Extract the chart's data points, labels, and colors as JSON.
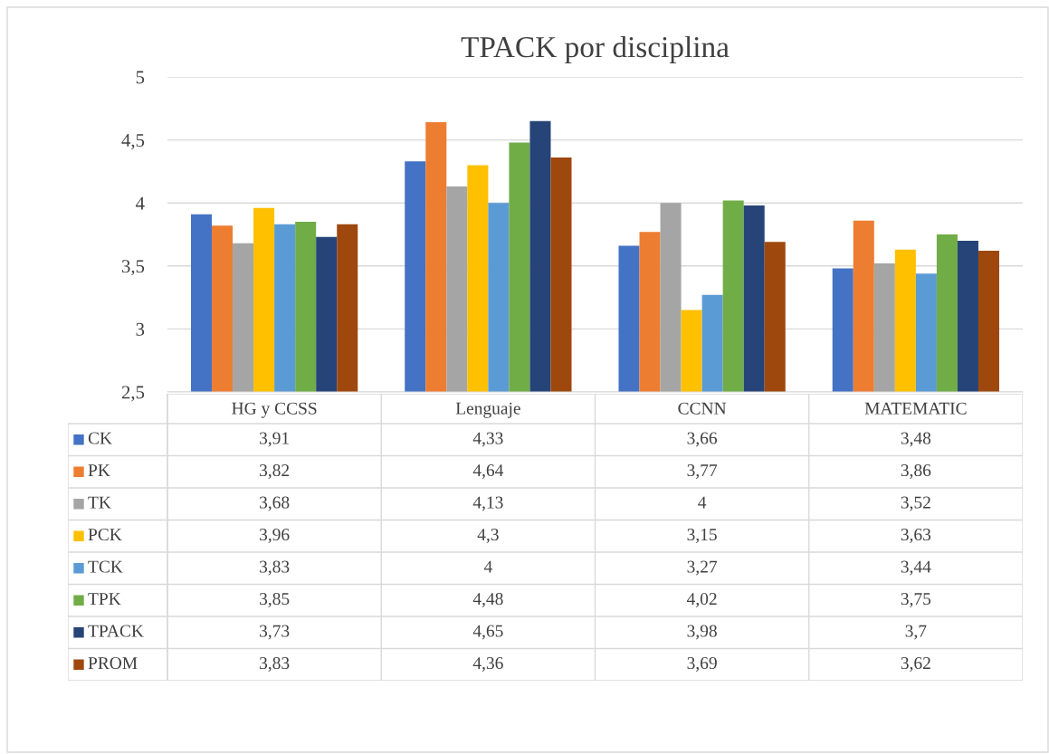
{
  "chart_data": {
    "type": "bar",
    "title": "TPACK por disciplina",
    "categories": [
      "HG y CCSS",
      "Lenguaje",
      "CCNN",
      "MATEMATIC"
    ],
    "series": [
      {
        "name": "CK",
        "color": "#4472c4",
        "values": [
          3.91,
          4.33,
          3.66,
          3.48
        ],
        "value_labels": [
          "3,91",
          "4,33",
          "3,66",
          "3,48"
        ]
      },
      {
        "name": "PK",
        "color": "#ed7d31",
        "values": [
          3.82,
          4.64,
          3.77,
          3.86
        ],
        "value_labels": [
          "3,82",
          "4,64",
          "3,77",
          "3,86"
        ]
      },
      {
        "name": "TK",
        "color": "#a5a5a5",
        "values": [
          3.68,
          4.13,
          4,
          3.52
        ],
        "value_labels": [
          "3,68",
          "4,13",
          "4",
          "3,52"
        ]
      },
      {
        "name": "PCK",
        "color": "#ffc000",
        "values": [
          3.96,
          4.3,
          3.15,
          3.63
        ],
        "value_labels": [
          "3,96",
          "4,3",
          "3,15",
          "3,63"
        ]
      },
      {
        "name": "TCK",
        "color": "#5b9bd5",
        "values": [
          3.83,
          4,
          3.27,
          3.44
        ],
        "value_labels": [
          "3,83",
          "4",
          "3,27",
          "3,44"
        ]
      },
      {
        "name": "TPK",
        "color": "#70ad47",
        "values": [
          3.85,
          4.48,
          4.02,
          3.75
        ],
        "value_labels": [
          "3,85",
          "4,48",
          "4,02",
          "3,75"
        ]
      },
      {
        "name": "TPACK",
        "color": "#264478",
        "values": [
          3.73,
          4.65,
          3.98,
          3.7
        ],
        "value_labels": [
          "3,73",
          "4,65",
          "3,98",
          "3,7"
        ]
      },
      {
        "name": "PROM",
        "color": "#9e480e",
        "values": [
          3.83,
          4.36,
          3.69,
          3.62
        ],
        "value_labels": [
          "3,83",
          "4,36",
          "3,69",
          "3,62"
        ]
      }
    ],
    "ylim": [
      2.5,
      5
    ],
    "yticks": [
      {
        "value": 2.5,
        "label": "2,5"
      },
      3,
      {
        "value": 3.5,
        "label": "3,5"
      },
      4,
      {
        "value": 4.5,
        "label": "4,5"
      },
      5
    ],
    "grid": "y",
    "legend": "bottom"
  }
}
